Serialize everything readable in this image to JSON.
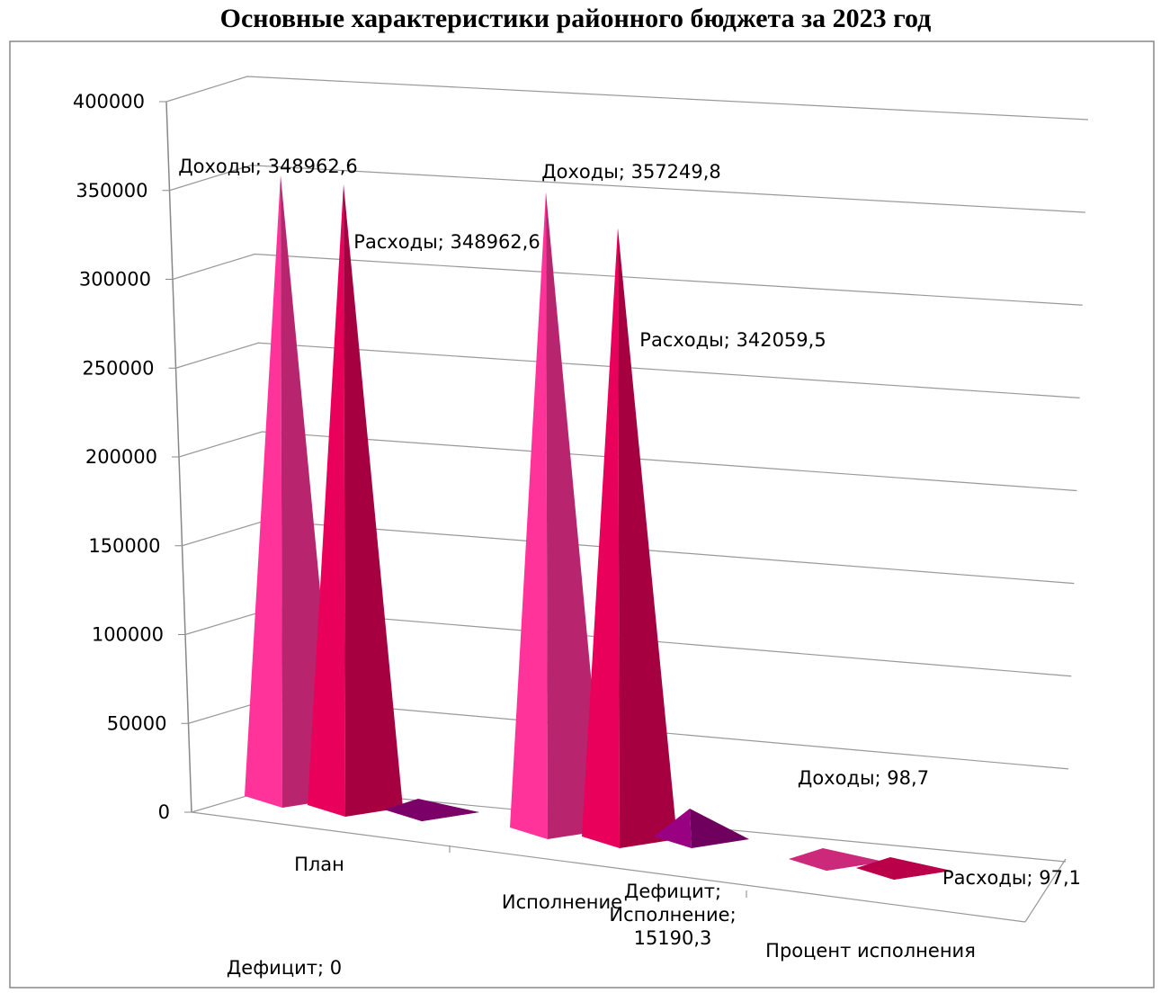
{
  "chart_data": {
    "type": "pyramid3d",
    "title": "Основные характеристики районного бюджета за 2023 год",
    "categories": [
      "План",
      "Исполнение",
      "Процент исполнения"
    ],
    "series": [
      {
        "name": "Доходы",
        "color": "#ff3399",
        "values": [
          348962.6,
          357249.8,
          98.7
        ],
        "value_labels": [
          "Доходы; 348962,6",
          "Доходы; 357249,8",
          "Доходы; 98,7"
        ]
      },
      {
        "name": "Расходы",
        "color": "#e8005a",
        "values": [
          348962.6,
          342059.5,
          97.1
        ],
        "value_labels": [
          "Расходы; 348962,6",
          "Расходы; 342059,5",
          "Расходы; 97,1"
        ]
      },
      {
        "name": "Дефицит",
        "color": "#9a0082",
        "values": [
          0,
          15190.3,
          null
        ],
        "value_labels": [
          "Дефицит; 0",
          "Дефицит; Исполнение; 15190,3",
          null
        ]
      }
    ],
    "ylim": [
      0,
      400000
    ],
    "yticks": [
      0,
      50000,
      100000,
      150000,
      200000,
      250000,
      300000,
      350000,
      400000
    ],
    "grid": true
  }
}
